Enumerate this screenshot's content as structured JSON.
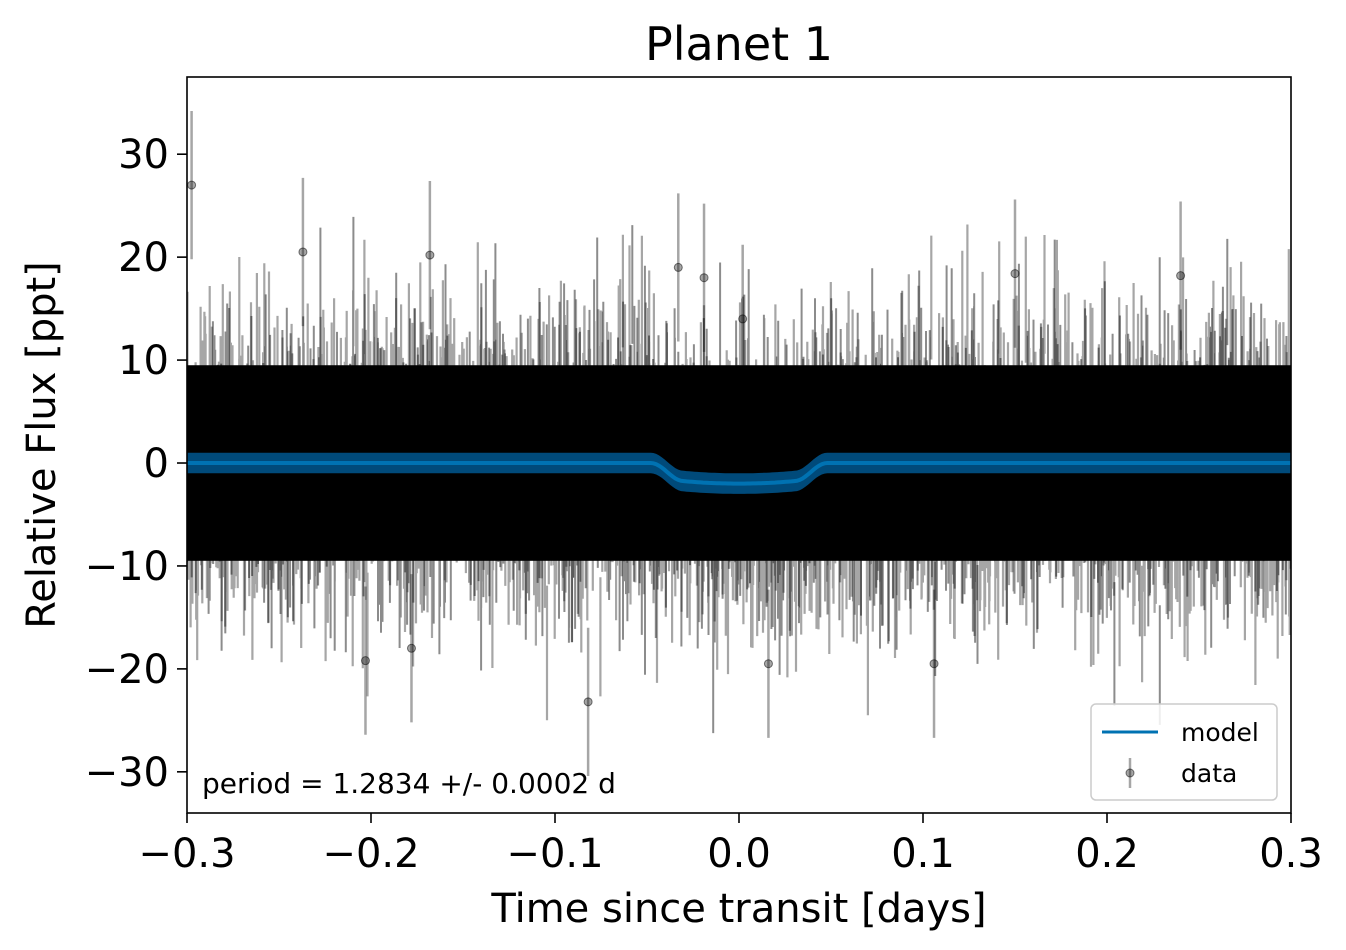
{
  "chart_data": {
    "type": "scatter",
    "title": "Planet 1",
    "xlabel": "Time since transit [days]",
    "ylabel": "Relative Flux [ppt]",
    "xlim": [
      -0.3,
      0.3
    ],
    "ylim": [
      -34,
      37.5
    ],
    "x_ticks": [
      -0.3,
      -0.2,
      -0.1,
      0.0,
      0.1,
      0.2,
      0.3
    ],
    "x_tick_labels": [
      "−0.3",
      "−0.2",
      "−0.1",
      "0.0",
      "0.1",
      "0.2",
      "0.3"
    ],
    "y_ticks": [
      -30,
      -20,
      -10,
      0,
      10,
      20,
      30
    ],
    "y_tick_labels": [
      "−30",
      "−20",
      "−10",
      "0",
      "10",
      "20",
      "30"
    ],
    "grid": false,
    "legend_position": "bottom-right",
    "annotation": "period = 1.2834 +/- 0.0002 d",
    "series": [
      {
        "name": "model",
        "kind": "line",
        "color": "#0072b2",
        "band_color": "#004a7a",
        "transit_depth": 2.0,
        "transit_center": 0.0,
        "transit_total_halfwidth": 0.048,
        "transit_flat_halfwidth": 0.03,
        "band_halfwidth": 1.0,
        "x": [
          -0.3,
          -0.05,
          -0.04,
          -0.03,
          0.0,
          0.03,
          0.04,
          0.05,
          0.3
        ],
        "y": [
          0,
          0,
          -0.6,
          -1.7,
          -2.0,
          -1.7,
          -0.6,
          0,
          0
        ]
      },
      {
        "name": "data",
        "kind": "errorbar-scatter",
        "color": "#000000",
        "noise_std": 5.5,
        "typical_yerr": 6.0,
        "note_points": [
          {
            "x": -0.2975,
            "y": 27.0
          },
          {
            "x": -0.237,
            "y": 20.5
          },
          {
            "x": -0.168,
            "y": 20.2
          },
          {
            "x": -0.033,
            "y": 19.0
          },
          {
            "x": -0.019,
            "y": 18.0
          },
          {
            "x": 0.002,
            "y": 14.0
          },
          {
            "x": -0.082,
            "y": -23.2
          },
          {
            "x": 0.016,
            "y": -19.5
          },
          {
            "x": 0.106,
            "y": -19.5
          },
          {
            "x": -0.203,
            "y": -19.2
          },
          {
            "x": -0.178,
            "y": -18.0
          },
          {
            "x": 0.15,
            "y": 18.4
          },
          {
            "x": 0.24,
            "y": 18.2
          }
        ]
      }
    ]
  }
}
